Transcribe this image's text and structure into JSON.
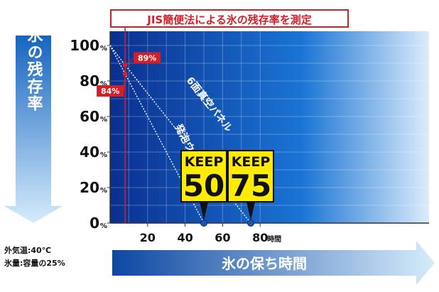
{
  "chart_data": {
    "type": "line",
    "title": "JIS簡便法による氷の残存率を測定",
    "ylabel": "氷の残存率",
    "xlabel": "氷の保ち時間",
    "x_unit": "時間",
    "y_unit": "%",
    "xlim": [
      0,
      80
    ],
    "ylim": [
      0,
      100
    ],
    "x_ticks": [
      "20",
      "40",
      "60",
      "80"
    ],
    "y_ticks": [
      "0",
      "20",
      "40",
      "60",
      "80",
      "100"
    ],
    "grid": true,
    "series": [
      {
        "name": "6面真空パネル",
        "x": [
          0,
          8,
          75
        ],
        "y": [
          100,
          89,
          0
        ]
      },
      {
        "name": "発泡ウレタン",
        "x": [
          0,
          8,
          50
        ],
        "y": [
          100,
          84,
          0
        ]
      }
    ],
    "reference_line_x": 8,
    "annotations": [
      {
        "text": "89%",
        "x": 8,
        "y": 89
      },
      {
        "text": "84%",
        "x": 8,
        "y": 84
      }
    ],
    "markers": [
      {
        "label_top": "KEEP",
        "label_num": "50",
        "x": 50,
        "y": 0
      },
      {
        "label_top": "KEEP",
        "label_num": "75",
        "x": 75,
        "y": 0
      }
    ],
    "conditions": [
      "外気温:40℃",
      "氷量:容量の25%"
    ]
  }
}
